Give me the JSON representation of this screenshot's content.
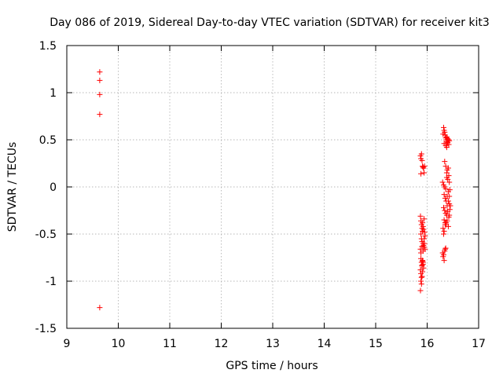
{
  "chart_data": {
    "type": "scatter",
    "title": "Day 086 of 2019, Sidereal Day-to-day VTEC variation (SDTVAR) for receiver kit3",
    "xlabel": "GPS time / hours",
    "ylabel": "SDTVAR / TECUs",
    "xlim": [
      9,
      17
    ],
    "ylim": [
      -1.5,
      1.5
    ],
    "xticks": [
      9,
      10,
      11,
      12,
      13,
      14,
      15,
      16,
      17
    ],
    "yticks": [
      -1.5,
      -1,
      -0.5,
      0,
      0.5,
      1,
      1.5
    ],
    "xtick_labels": [
      "9",
      "10",
      "11",
      "12",
      "13",
      "14",
      "15",
      "16",
      "17"
    ],
    "ytick_labels": [
      "-1.5",
      "-1",
      "-0.5",
      "0",
      "0.5",
      "1",
      "1.5"
    ],
    "grid": true,
    "marker": "+",
    "series": [
      {
        "name": "SDTVAR",
        "color": "#ff0000",
        "x": [
          9.64,
          9.64,
          9.64,
          9.64,
          9.64,
          15.87,
          15.88,
          15.89,
          15.9,
          15.91,
          15.92,
          15.93,
          15.88,
          15.94,
          15.95,
          15.87,
          15.88,
          15.89,
          15.9,
          15.91,
          15.92,
          15.93,
          15.94,
          15.95,
          15.96,
          15.88,
          15.89,
          15.9,
          15.91,
          15.92,
          15.93,
          15.94,
          15.87,
          15.88,
          15.9,
          15.92,
          15.94,
          15.95,
          15.96,
          15.88,
          15.89,
          15.9,
          15.91,
          15.92,
          15.93,
          15.87,
          15.88,
          15.89,
          15.9,
          15.91,
          15.92,
          15.88,
          15.9,
          15.91,
          15.89,
          15.87,
          16.32,
          16.33,
          16.34,
          16.35,
          16.36,
          16.37,
          16.38,
          16.39,
          16.4,
          16.42,
          16.43,
          16.31,
          16.33,
          16.36,
          16.38,
          16.4,
          16.42,
          16.3,
          16.32,
          16.34,
          16.36,
          16.38,
          16.39,
          16.41,
          16.43,
          16.44,
          16.33,
          16.35,
          16.37,
          16.39,
          16.41,
          16.43,
          16.45,
          16.32,
          16.34,
          16.36,
          16.38,
          16.4,
          16.42,
          16.44,
          16.33,
          16.35,
          16.37,
          16.39,
          16.41,
          16.43,
          16.34,
          16.36,
          16.38,
          16.4,
          16.42,
          16.31,
          16.33,
          16.35,
          16.37,
          16.39,
          16.41,
          16.43,
          16.3,
          16.32,
          16.34,
          16.36,
          16.31,
          16.33,
          16.35,
          16.32
        ],
        "y": [
          1.22,
          1.13,
          0.98,
          0.77,
          -1.28,
          0.33,
          0.3,
          0.35,
          0.28,
          0.22,
          0.21,
          0.2,
          0.14,
          0.15,
          0.22,
          -0.31,
          -0.36,
          -0.4,
          -0.44,
          -0.38,
          -0.42,
          -0.45,
          -0.34,
          -0.48,
          -0.52,
          -0.5,
          -0.55,
          -0.58,
          -0.47,
          -0.6,
          -0.62,
          -0.55,
          -0.66,
          -0.7,
          -0.63,
          -0.68,
          -0.64,
          -0.6,
          -0.66,
          -0.76,
          -0.8,
          -0.84,
          -0.78,
          -0.82,
          -0.86,
          -0.88,
          -0.92,
          -0.96,
          -0.83,
          -0.79,
          -0.8,
          -1.0,
          -0.95,
          -0.9,
          -1.03,
          -1.1,
          0.63,
          0.6,
          0.58,
          0.55,
          0.52,
          0.5,
          0.53,
          0.48,
          0.51,
          0.45,
          0.49,
          0.56,
          0.46,
          0.44,
          0.42,
          0.47,
          0.5,
          0.05,
          0.02,
          0.0,
          -0.02,
          0.1,
          0.18,
          0.2,
          0.05,
          -0.03,
          -0.08,
          -0.12,
          -0.15,
          -0.1,
          -0.05,
          -0.18,
          -0.2,
          -0.22,
          -0.25,
          -0.28,
          -0.3,
          -0.26,
          -0.32,
          -0.24,
          -0.35,
          -0.38,
          -0.4,
          -0.36,
          -0.42,
          -0.3,
          0.27,
          0.22,
          0.15,
          0.08,
          0.12,
          -0.44,
          -0.47,
          -0.4,
          -0.38,
          -0.2,
          -0.15,
          -0.1,
          -0.7,
          -0.72,
          -0.68,
          -0.65,
          -0.74,
          -0.78,
          -0.66,
          -0.5
        ]
      }
    ]
  }
}
